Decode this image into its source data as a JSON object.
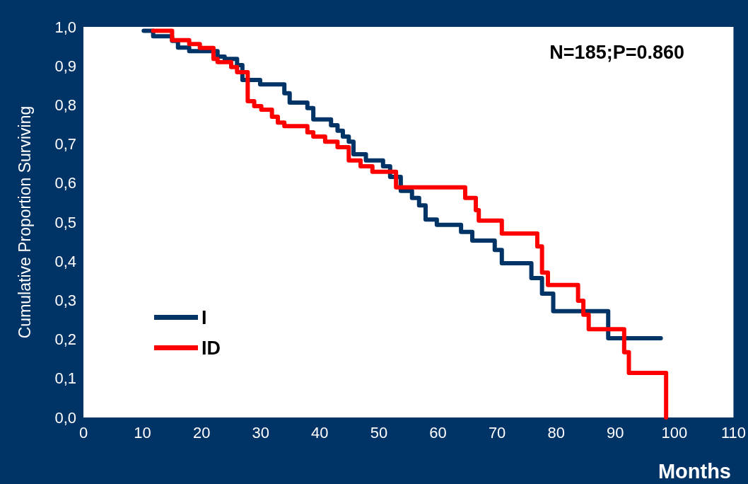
{
  "chart_data": {
    "type": "step",
    "xlabel": "Months",
    "ylabel": "Cumulative Proportion Surviving",
    "annotations": [
      "N=185;P=0.860"
    ],
    "xlim": [
      0,
      110
    ],
    "xticks": [
      0,
      10,
      20,
      30,
      40,
      50,
      60,
      70,
      80,
      90,
      100,
      110
    ],
    "ylim": [
      0,
      1
    ],
    "yticks": [
      {
        "value": 0,
        "label": "0,0"
      },
      {
        "value": 0.1,
        "label": "0,1"
      },
      {
        "value": 0.2,
        "label": "0,2"
      },
      {
        "value": 0.3,
        "label": "0,3"
      },
      {
        "value": 0.4,
        "label": "0,4"
      },
      {
        "value": 0.5,
        "label": "0,5"
      },
      {
        "value": 0.6,
        "label": "0,6"
      },
      {
        "value": 0.7,
        "label": "0,7"
      },
      {
        "value": 0.8,
        "label": "0,8"
      },
      {
        "value": 0.9,
        "label": "0,9"
      },
      {
        "value": 1,
        "label": "1,0"
      }
    ],
    "grid": false,
    "legend": "bottom left",
    "marker": "none",
    "line_style": "solid",
    "series": [
      {
        "name": "I",
        "color": "#003366",
        "x": [
          10.2,
          11.8,
          15.0,
          16.0,
          17.9,
          22.7,
          23.9,
          26.0,
          26.9,
          29.9,
          34.0,
          34.9,
          37.9,
          38.9,
          41.9,
          43.0,
          43.9,
          44.9,
          45.7,
          47.8,
          50.7,
          51.9,
          53.7,
          55.6,
          56.8,
          57.9,
          59.8,
          63.9,
          65.8,
          69.6,
          70.8,
          75.8,
          77.6,
          79.5,
          88.8,
          97.7
        ],
        "values": [
          0.99,
          0.976,
          0.964,
          0.947,
          0.938,
          0.924,
          0.918,
          0.902,
          0.864,
          0.853,
          0.83,
          0.806,
          0.792,
          0.763,
          0.748,
          0.734,
          0.719,
          0.706,
          0.674,
          0.658,
          0.643,
          0.616,
          0.58,
          0.562,
          0.543,
          0.507,
          0.493,
          0.475,
          0.453,
          0.429,
          0.395,
          0.357,
          0.317,
          0.272,
          0.203,
          0.203
        ]
      },
      {
        "name": "ID",
        "color": "#ff0000",
        "x": [
          11.8,
          15.0,
          17.9,
          19.7,
          22.0,
          22.7,
          25.0,
          26.0,
          27.8,
          28.9,
          30.1,
          31.9,
          32.9,
          34.0,
          37.9,
          38.9,
          40.9,
          43.0,
          44.9,
          46.9,
          48.9,
          52.9,
          64.6,
          66.4,
          66.9,
          70.8,
          76.8,
          77.6,
          78.6,
          83.7,
          84.6,
          85.5,
          91.5,
          92.3,
          98.6
        ],
        "values": [
          0.99,
          0.966,
          0.956,
          0.946,
          0.918,
          0.91,
          0.897,
          0.884,
          0.81,
          0.797,
          0.788,
          0.77,
          0.755,
          0.746,
          0.73,
          0.719,
          0.706,
          0.692,
          0.658,
          0.643,
          0.629,
          0.589,
          0.562,
          0.531,
          0.504,
          0.471,
          0.438,
          0.371,
          0.339,
          0.299,
          0.263,
          0.226,
          0.167,
          0.114,
          0.0
        ]
      }
    ]
  }
}
